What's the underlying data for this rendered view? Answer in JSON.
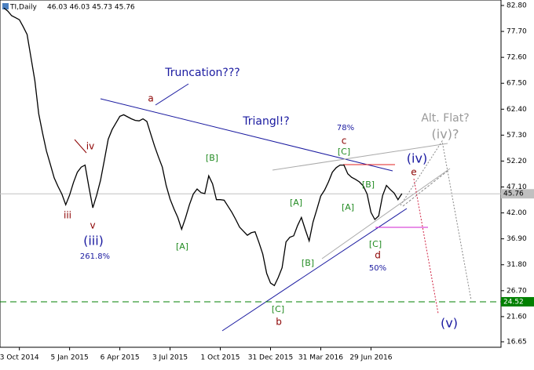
{
  "chart_data": {
    "type": "line",
    "title": "TI,Daily",
    "header_values": "46.03 46.03 45.73 45.76",
    "color": "#000000",
    "categories": [
      null,
      null,
      null,
      null,
      "3 Oct 2014",
      null,
      null,
      null,
      null,
      null,
      null,
      null,
      null,
      null,
      null,
      null,
      null,
      "5 Jan 2015",
      null,
      null,
      null,
      null,
      null,
      null,
      null,
      null,
      null,
      null,
      null,
      null,
      "6 Apr 2015",
      null,
      null,
      null,
      null,
      null,
      null,
      null,
      null,
      null,
      null,
      null,
      null,
      "3 Jul 2015",
      null,
      null,
      null,
      null,
      null,
      null,
      null,
      null,
      null,
      null,
      null,
      null,
      "1 Oct 2015",
      null,
      null,
      null,
      null,
      null,
      null,
      null,
      null,
      null,
      null,
      null,
      null,
      "31 Dec 2015",
      null,
      null,
      null,
      null,
      null,
      null,
      null,
      null,
      null,
      null,
      null,
      null,
      "31 Mar 2016",
      null,
      null,
      null,
      null,
      null,
      null,
      null,
      null,
      null,
      null,
      null,
      null,
      "29 Jun 2016",
      null,
      null,
      null,
      null,
      null,
      null,
      null,
      null
    ],
    "values": [
      82.3,
      81.7,
      80.8,
      80.4,
      80.0,
      78.6,
      77.1,
      72.6,
      68.0,
      61.5,
      57.7,
      54.2,
      51.6,
      48.9,
      47.2,
      45.7,
      43.6,
      45.5,
      48.0,
      50.0,
      51.0,
      51.4,
      47.1,
      43.0,
      45.5,
      48.4,
      52.4,
      56.5,
      58.4,
      59.7,
      61.0,
      61.3,
      60.9,
      60.5,
      60.2,
      60.1,
      60.5,
      60.0,
      57.5,
      55.1,
      53.0,
      51.0,
      47.4,
      44.7,
      42.8,
      41.1,
      38.8,
      41.0,
      43.6,
      45.7,
      46.7,
      46.0,
      45.8,
      49.3,
      47.7,
      44.6,
      44.6,
      44.5,
      43.3,
      42.1,
      40.7,
      39.2,
      38.4,
      37.6,
      38.1,
      38.3,
      36.2,
      33.9,
      30.1,
      28.2,
      27.7,
      29.3,
      31.2,
      36.3,
      37.2,
      37.5,
      39.5,
      41.1,
      38.7,
      36.5,
      40.2,
      42.7,
      45.3,
      46.5,
      48.1,
      50.0,
      50.9,
      51.4,
      51.4,
      49.7,
      49.0,
      48.6,
      48.1,
      47.3,
      45.7,
      42.1,
      40.7,
      41.4,
      45.4,
      47.4,
      46.6,
      45.9,
      44.6,
      45.8
    ],
    "ylim": [
      15.57,
      83.88
    ],
    "yticks": [
      {
        "value": 82.8,
        "label": "82.80"
      },
      {
        "value": 77.7,
        "label": "77.70"
      },
      {
        "value": 72.6,
        "label": "72.60"
      },
      {
        "value": 67.5,
        "label": "67.50"
      },
      {
        "value": 62.4,
        "label": "62.40"
      },
      {
        "value": 57.3,
        "label": "57.30"
      },
      {
        "value": 52.2,
        "label": "52.20"
      },
      {
        "value": 47.1,
        "label": "47.10"
      },
      {
        "value": 42,
        "label": "42.00"
      },
      {
        "value": 36.9,
        "label": "36.90"
      },
      {
        "value": 31.8,
        "label": "31.80"
      },
      {
        "value": 26.7,
        "label": "26.70"
      },
      {
        "value": 21.6,
        "label": "21.60"
      },
      16.65
    ],
    "hlines": [
      {
        "value": 45.76,
        "color": "#c0c0c0"
      },
      {
        "value": 24.52,
        "color": "#008000"
      }
    ],
    "annotations": [
      {
        "text": "Truncation???",
        "color": "#1a1aa0"
      },
      {
        "text": "a",
        "color": "#8b0000"
      },
      {
        "text": "Triangl!?",
        "color": "#1a1aa0"
      },
      {
        "text": "78%",
        "color": "#1a1aa0"
      },
      {
        "text": "c",
        "color": "#8b0000"
      },
      {
        "text": "[C]",
        "color": "#228b22"
      },
      {
        "text": "iv",
        "color": "#8b0000"
      },
      {
        "text": "[B]",
        "color": "#228b22"
      },
      {
        "text": "(iv)",
        "color": "#1a1aa0"
      },
      {
        "text": "e",
        "color": "#8b0000"
      },
      {
        "text": "Alt. Flat?",
        "color": "#999999"
      },
      {
        "text": "(iv)?",
        "color": "#999999"
      },
      {
        "text": "[B]",
        "color": "#228b22"
      },
      {
        "text": "[A]",
        "color": "#228b22"
      },
      {
        "text": "[A]",
        "color": "#228b22"
      },
      {
        "text": "iii",
        "color": "#8b0000"
      },
      {
        "text": "v",
        "color": "#8b0000"
      },
      {
        "text": "(iii)",
        "color": "#1a1aa0"
      },
      {
        "text": "261.8%",
        "color": "#1a1aa0"
      },
      {
        "text": "[A]",
        "color": "#228b22"
      },
      {
        "text": "[C]",
        "color": "#228b22"
      },
      {
        "text": "d",
        "color": "#8b0000"
      },
      {
        "text": "[B]",
        "color": "#228b22"
      },
      {
        "text": "50%",
        "color": "#1a1aa0"
      },
      {
        "text": "[C]",
        "color": "#228b22"
      },
      {
        "text": "b",
        "color": "#8b0000"
      },
      {
        "text": "(v)",
        "color": "#1a1aa0"
      }
    ]
  }
}
